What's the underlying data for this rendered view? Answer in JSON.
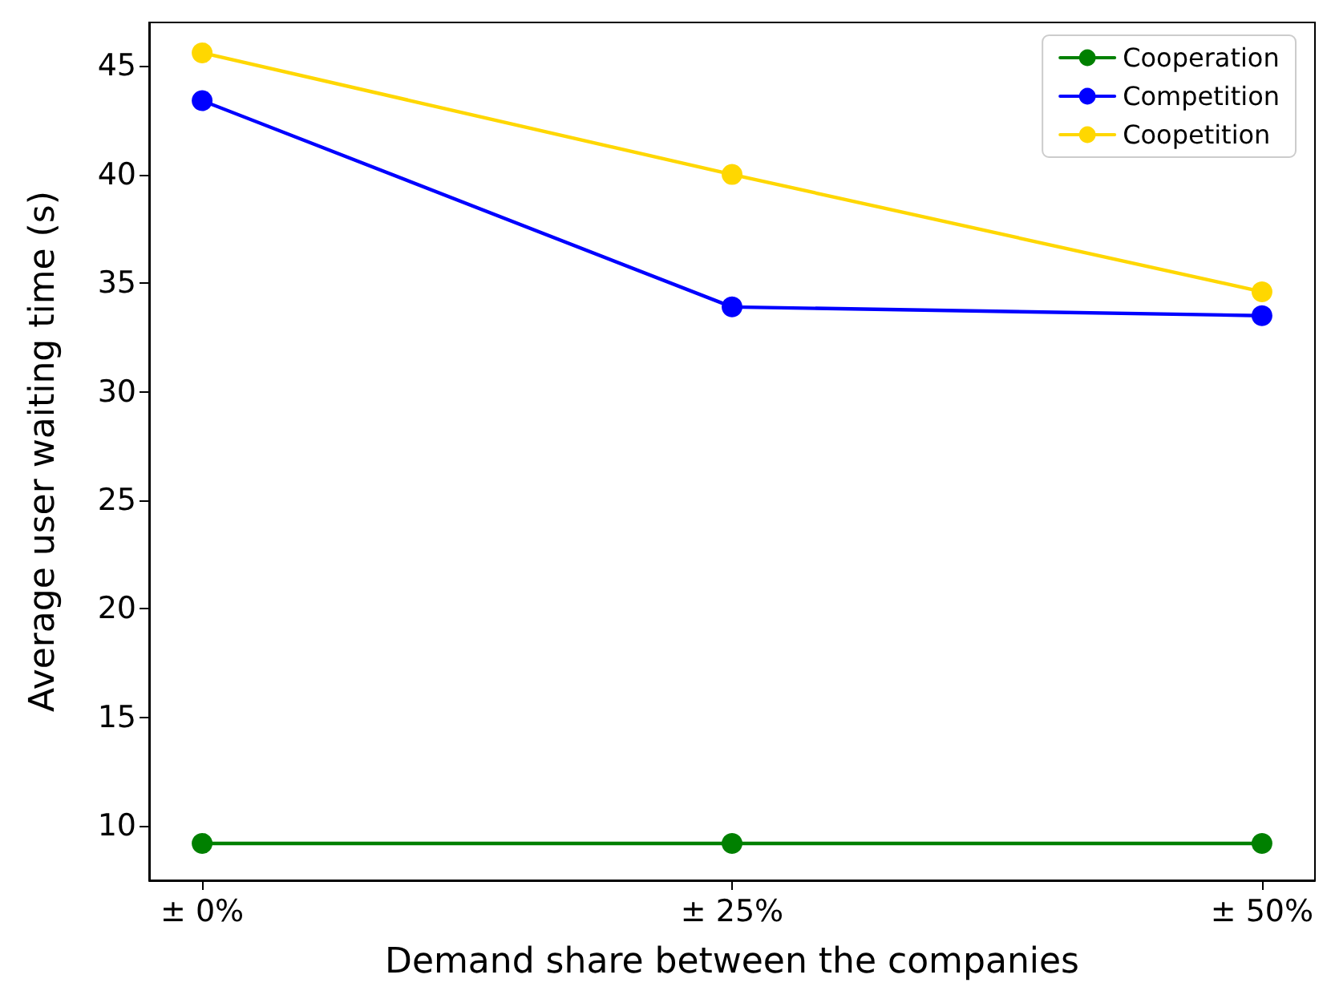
{
  "chart_data": {
    "type": "line",
    "xlabel": "Demand share between the companies",
    "ylabel": "Average user waiting time (s)",
    "categories": [
      "± 0%",
      "± 25%",
      "± 50%"
    ],
    "series": [
      {
        "name": "Cooperation",
        "color": "#008000",
        "values": [
          9.2,
          9.2,
          9.2
        ]
      },
      {
        "name": "Competition",
        "color": "#0000ff",
        "values": [
          43.4,
          33.9,
          33.5
        ]
      },
      {
        "name": "Coopetition",
        "color": "#ffd700",
        "values": [
          45.6,
          40.0,
          34.6
        ]
      }
    ],
    "ylim": [
      7.5,
      47
    ],
    "yticks": [
      10,
      15,
      20,
      25,
      30,
      35,
      40,
      45
    ],
    "grid": false,
    "legend": "top right",
    "marker": "circle",
    "line_style": "solid"
  }
}
